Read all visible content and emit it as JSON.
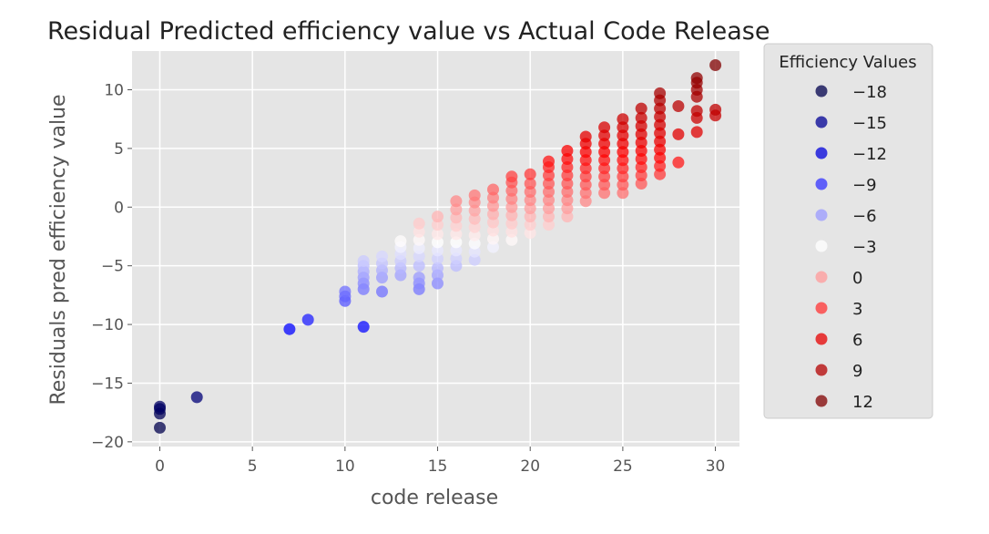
{
  "chart_data": {
    "type": "scatter",
    "title": "Residual Predicted efficiency value vs Actual Code Release",
    "xlabel": "code release",
    "ylabel": "Residuals pred efficiency value",
    "xlim": [
      -1.5,
      31.3
    ],
    "ylim": [
      -20.4,
      13.3
    ],
    "xticks": [
      0,
      5,
      10,
      15,
      20,
      25,
      30
    ],
    "yticks": [
      -20,
      -15,
      -10,
      -5,
      0,
      5,
      10
    ],
    "xtick_labels": [
      "0",
      "5",
      "10",
      "15",
      "20",
      "25",
      "30"
    ],
    "ytick_labels": [
      "−20",
      "−15",
      "−10",
      "−5",
      "0",
      "5",
      "10"
    ],
    "grid": true,
    "background": "#e5e5e5",
    "colormap": "seismic",
    "color_range": [
      -18,
      12
    ],
    "legend": {
      "title": "Efficiency Values",
      "placement": "right, outside plot",
      "entries": [
        {
          "label": "−18",
          "value": -18
        },
        {
          "label": "−15",
          "value": -15
        },
        {
          "label": "−12",
          "value": -12
        },
        {
          "label": "−9",
          "value": -9
        },
        {
          "label": "−6",
          "value": -6
        },
        {
          "label": "−3",
          "value": -3
        },
        {
          "label": "0",
          "value": 0
        },
        {
          "label": "3",
          "value": 3
        },
        {
          "label": "6",
          "value": 6
        },
        {
          "label": "9",
          "value": 9
        },
        {
          "label": "12",
          "value": 12
        }
      ]
    },
    "columns": [
      {
        "x": 0,
        "ys": [
          -18.8,
          -17.6,
          -17.2,
          -17.0
        ]
      },
      {
        "x": 2,
        "ys": [
          -16.2
        ]
      },
      {
        "x": 7,
        "ys": [
          -10.4
        ]
      },
      {
        "x": 8,
        "ys": [
          -9.6
        ]
      },
      {
        "x": 10,
        "ys": [
          -8.0,
          -7.6,
          -7.2
        ]
      },
      {
        "x": 11,
        "ys": [
          -10.2,
          -7.0,
          -6.5,
          -6.0,
          -5.5,
          -5.0,
          -4.6
        ]
      },
      {
        "x": 12,
        "ys": [
          -7.2,
          -6.0,
          -5.4,
          -4.8,
          -4.2
        ]
      },
      {
        "x": 13,
        "ys": [
          -5.8,
          -5.2,
          -4.6,
          -4.0,
          -3.4,
          -2.9
        ]
      },
      {
        "x": 14,
        "ys": [
          -7.0,
          -6.5,
          -6.0,
          -5.0,
          -4.2,
          -3.5,
          -2.8,
          -2.1,
          -1.4
        ]
      },
      {
        "x": 15,
        "ys": [
          -6.5,
          -5.8,
          -5.2,
          -4.4,
          -3.7,
          -3.0,
          -2.3,
          -1.5,
          -0.8
        ]
      },
      {
        "x": 16,
        "ys": [
          -5.0,
          -4.4,
          -3.7,
          -3.0,
          -2.3,
          -1.6,
          -0.9,
          -0.2,
          0.5
        ]
      },
      {
        "x": 17,
        "ys": [
          -4.5,
          -3.8,
          -3.1,
          -2.4,
          -1.7,
          -1.0,
          -0.3,
          0.4,
          1.0
        ]
      },
      {
        "x": 18,
        "ys": [
          -3.4,
          -2.7,
          -2.0,
          -1.3,
          -0.6,
          0.1,
          0.8,
          1.5
        ]
      },
      {
        "x": 19,
        "ys": [
          -2.8,
          -2.1,
          -1.4,
          -0.7,
          0.0,
          0.7,
          1.4,
          2.1,
          2.6
        ]
      },
      {
        "x": 20,
        "ys": [
          -2.2,
          -1.5,
          -0.8,
          -0.1,
          0.6,
          1.3,
          2.0,
          2.8
        ]
      },
      {
        "x": 21,
        "ys": [
          -1.5,
          -0.8,
          -0.1,
          0.6,
          1.3,
          2.0,
          2.7,
          3.4,
          3.9
        ]
      },
      {
        "x": 22,
        "ys": [
          -0.8,
          -0.1,
          0.6,
          1.3,
          2.0,
          2.7,
          3.4,
          4.1,
          4.8
        ]
      },
      {
        "x": 23,
        "ys": [
          0.5,
          1.2,
          1.9,
          2.6,
          3.3,
          4.0,
          4.7,
          5.4,
          6.0
        ]
      },
      {
        "x": 24,
        "ys": [
          1.2,
          1.9,
          2.6,
          3.3,
          4.0,
          4.7,
          5.4,
          6.1,
          6.8
        ]
      },
      {
        "x": 25,
        "ys": [
          1.2,
          1.9,
          2.6,
          3.3,
          4.0,
          4.7,
          5.4,
          6.1,
          6.8,
          7.5
        ]
      },
      {
        "x": 26,
        "ys": [
          2.0,
          2.7,
          3.4,
          4.1,
          4.8,
          5.5,
          6.2,
          6.9,
          7.6,
          8.4
        ]
      },
      {
        "x": 27,
        "ys": [
          2.8,
          3.5,
          4.2,
          4.9,
          5.6,
          6.3,
          7.0,
          7.7,
          8.4,
          9.1,
          9.7
        ]
      },
      {
        "x": 28,
        "ys": [
          3.8,
          6.2,
          8.6
        ]
      },
      {
        "x": 29,
        "ys": [
          6.4,
          7.6,
          8.2,
          9.4,
          10.0,
          10.6,
          11.0
        ]
      },
      {
        "x": 30,
        "ys": [
          7.8,
          8.3,
          12.1
        ]
      }
    ]
  }
}
